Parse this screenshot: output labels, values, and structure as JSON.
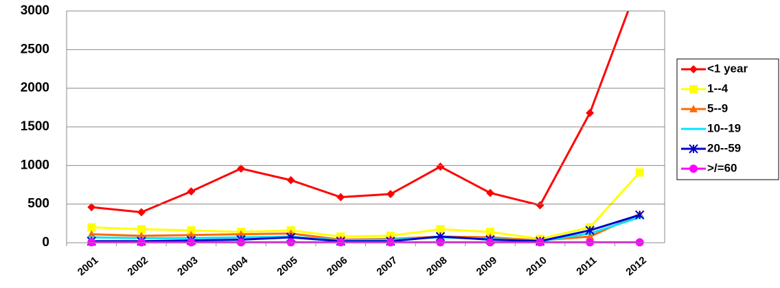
{
  "chart_data": {
    "type": "line",
    "categories": [
      "2001",
      "2002",
      "2003",
      "2004",
      "2005",
      "2006",
      "2007",
      "2008",
      "2009",
      "2010",
      "2011",
      "2012"
    ],
    "series": [
      {
        "name": "<1 year",
        "color": "#ff0000",
        "marker": "diamond",
        "values": [
          460,
          395,
          665,
          960,
          810,
          590,
          630,
          985,
          645,
          485,
          1680,
          3400
        ]
      },
      {
        "name": "1--4",
        "color": "#ffff00",
        "marker": "square",
        "values": [
          200,
          175,
          160,
          140,
          160,
          80,
          90,
          175,
          140,
          50,
          200,
          910
        ]
      },
      {
        "name": "5--9",
        "color": "#ff6a00",
        "marker": "triangle",
        "values": [
          110,
          90,
          100,
          110,
          120,
          40,
          50,
          80,
          70,
          30,
          80,
          370
        ]
      },
      {
        "name": "10--19",
        "color": "#00e5ff",
        "marker": "dash",
        "values": [
          70,
          60,
          60,
          70,
          80,
          30,
          40,
          70,
          50,
          20,
          120,
          330
        ]
      },
      {
        "name": "20--59",
        "color": "#0000cc",
        "marker": "star",
        "values": [
          20,
          20,
          30,
          40,
          70,
          20,
          20,
          80,
          40,
          20,
          160,
          360
        ]
      },
      {
        "name": ">/=60",
        "color": "#ff00ff",
        "marker": "circle",
        "values": [
          5,
          5,
          5,
          5,
          5,
          5,
          5,
          5,
          5,
          5,
          5,
          5
        ]
      }
    ],
    "ylim": [
      0,
      3000
    ],
    "yticks": [
      0,
      500,
      1000,
      1500,
      2000,
      2500,
      3000
    ],
    "grid": true,
    "legend": "right"
  }
}
